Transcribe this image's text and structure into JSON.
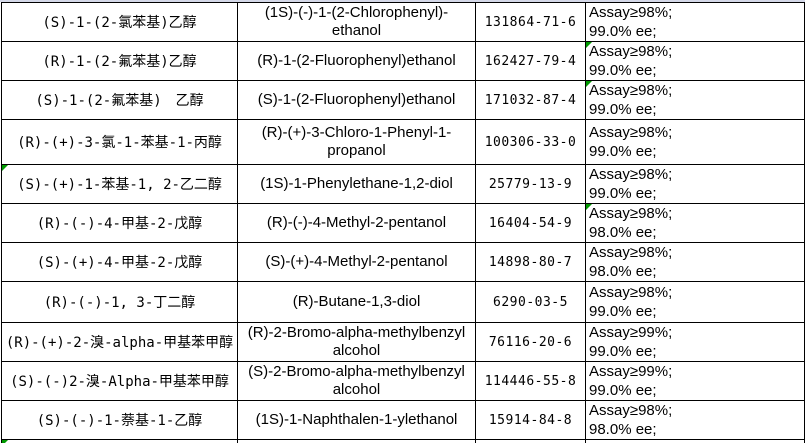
{
  "app": {
    "description": "spreadsheet-table-of-chiral-alcohol-chemicals"
  },
  "colors": {
    "border": "#000000",
    "text": "#000000",
    "background": "#ffffff",
    "error_indicator_green": "#009900",
    "top_edge_strip": "#d4d8e8"
  },
  "icons": {
    "error_indicator": "green-corner-triangle-icon"
  },
  "table": {
    "columns": [
      "chinese-name",
      "english-name",
      "cas-number",
      "assay-spec"
    ],
    "rows": [
      {
        "cn": "(S)-1-(2-氯苯基)乙醇",
        "en": "(1S)-(-)-1-(2-Chlorophenyl)-\nethanol",
        "cas": "131864-71-6",
        "assay": "Assay≥98%;\n99.0% ee;",
        "cn_flag": false,
        "assay_flag": false
      },
      {
        "cn": "(R)-1-(2-氟苯基)乙醇",
        "en": "(R)-1-(2-Fluorophenyl)ethanol",
        "cas": "162427-79-4",
        "assay": "Assay≥98%;\n99.0% ee;",
        "cn_flag": false,
        "assay_flag": true
      },
      {
        "cn": "(S)-1-(2-氟苯基)　乙醇",
        "en": "(S)-1-(2-Fluorophenyl)ethanol",
        "cas": "171032-87-4",
        "assay": "Assay≥98%;\n99.0% ee;",
        "cn_flag": false,
        "assay_flag": true
      },
      {
        "cn": "(R)-(+)-3-氯-1-苯基-1-丙醇",
        "en": "(R)-(+)-3-Chloro-1-Phenyl-1-\npropanol",
        "cas": "100306-33-0",
        "assay": "Assay≥98%;\n99.0% ee;",
        "cn_flag": false,
        "assay_flag": false
      },
      {
        "cn": "(S)-(+)-1-苯基-1, 2-乙二醇",
        "en": "(1S)-1-Phenylethane-1,2-diol",
        "cas": "25779-13-9",
        "assay": "Assay≥98%;\n99.0% ee;",
        "cn_flag": true,
        "assay_flag": false
      },
      {
        "cn": "(R)-(-)-4-甲基-2-戊醇",
        "en": "(R)-(-)-4-Methyl-2-pentanol",
        "cas": "16404-54-9",
        "assay": "Assay≥98%;\n98.0% ee;",
        "cn_flag": false,
        "assay_flag": true
      },
      {
        "cn": "(S)-(+)-4-甲基-2-戊醇",
        "en": "(S)-(+)-4-Methyl-2-pentanol",
        "cas": "14898-80-7",
        "assay": "Assay≥98%;\n98.0% ee;",
        "cn_flag": false,
        "assay_flag": false
      },
      {
        "cn": "(R)-(-)-1, 3-丁二醇",
        "en": "(R)-Butane-1,3-diol",
        "cas": "6290-03-5",
        "assay": "Assay≥98%;\n99.0% ee;",
        "cn_flag": false,
        "assay_flag": false
      },
      {
        "cn": "(R)-(+)-2-溴-alpha-甲基苯甲醇",
        "en": "(R)-2-Bromo-alpha-methylbenzyl\nalcohol",
        "cas": "76116-20-6",
        "assay": "Assay≥99%;\n99.0% ee;",
        "cn_flag": false,
        "assay_flag": false
      },
      {
        "cn": "(S)-(-)2-溴-Alpha-甲基苯甲醇",
        "en": "(S)-2-Bromo-alpha-methylbenzyl\nalcohol",
        "cas": "114446-55-8",
        "assay": "Assay≥99%;\n99.0% ee;",
        "cn_flag": false,
        "assay_flag": false
      },
      {
        "cn": "(S)-(-)-1-萘基-1-乙醇",
        "en": "(1S)-1-Naphthalen-1-ylethanol",
        "cas": "15914-84-8",
        "assay": "Assay≥98%;\n98.0% ee;",
        "cn_flag": false,
        "assay_flag": false
      }
    ],
    "partial_row": {
      "cn": "",
      "en": "",
      "cas": "",
      "assay": "",
      "cn_flag": true,
      "assay_flag": false
    }
  }
}
